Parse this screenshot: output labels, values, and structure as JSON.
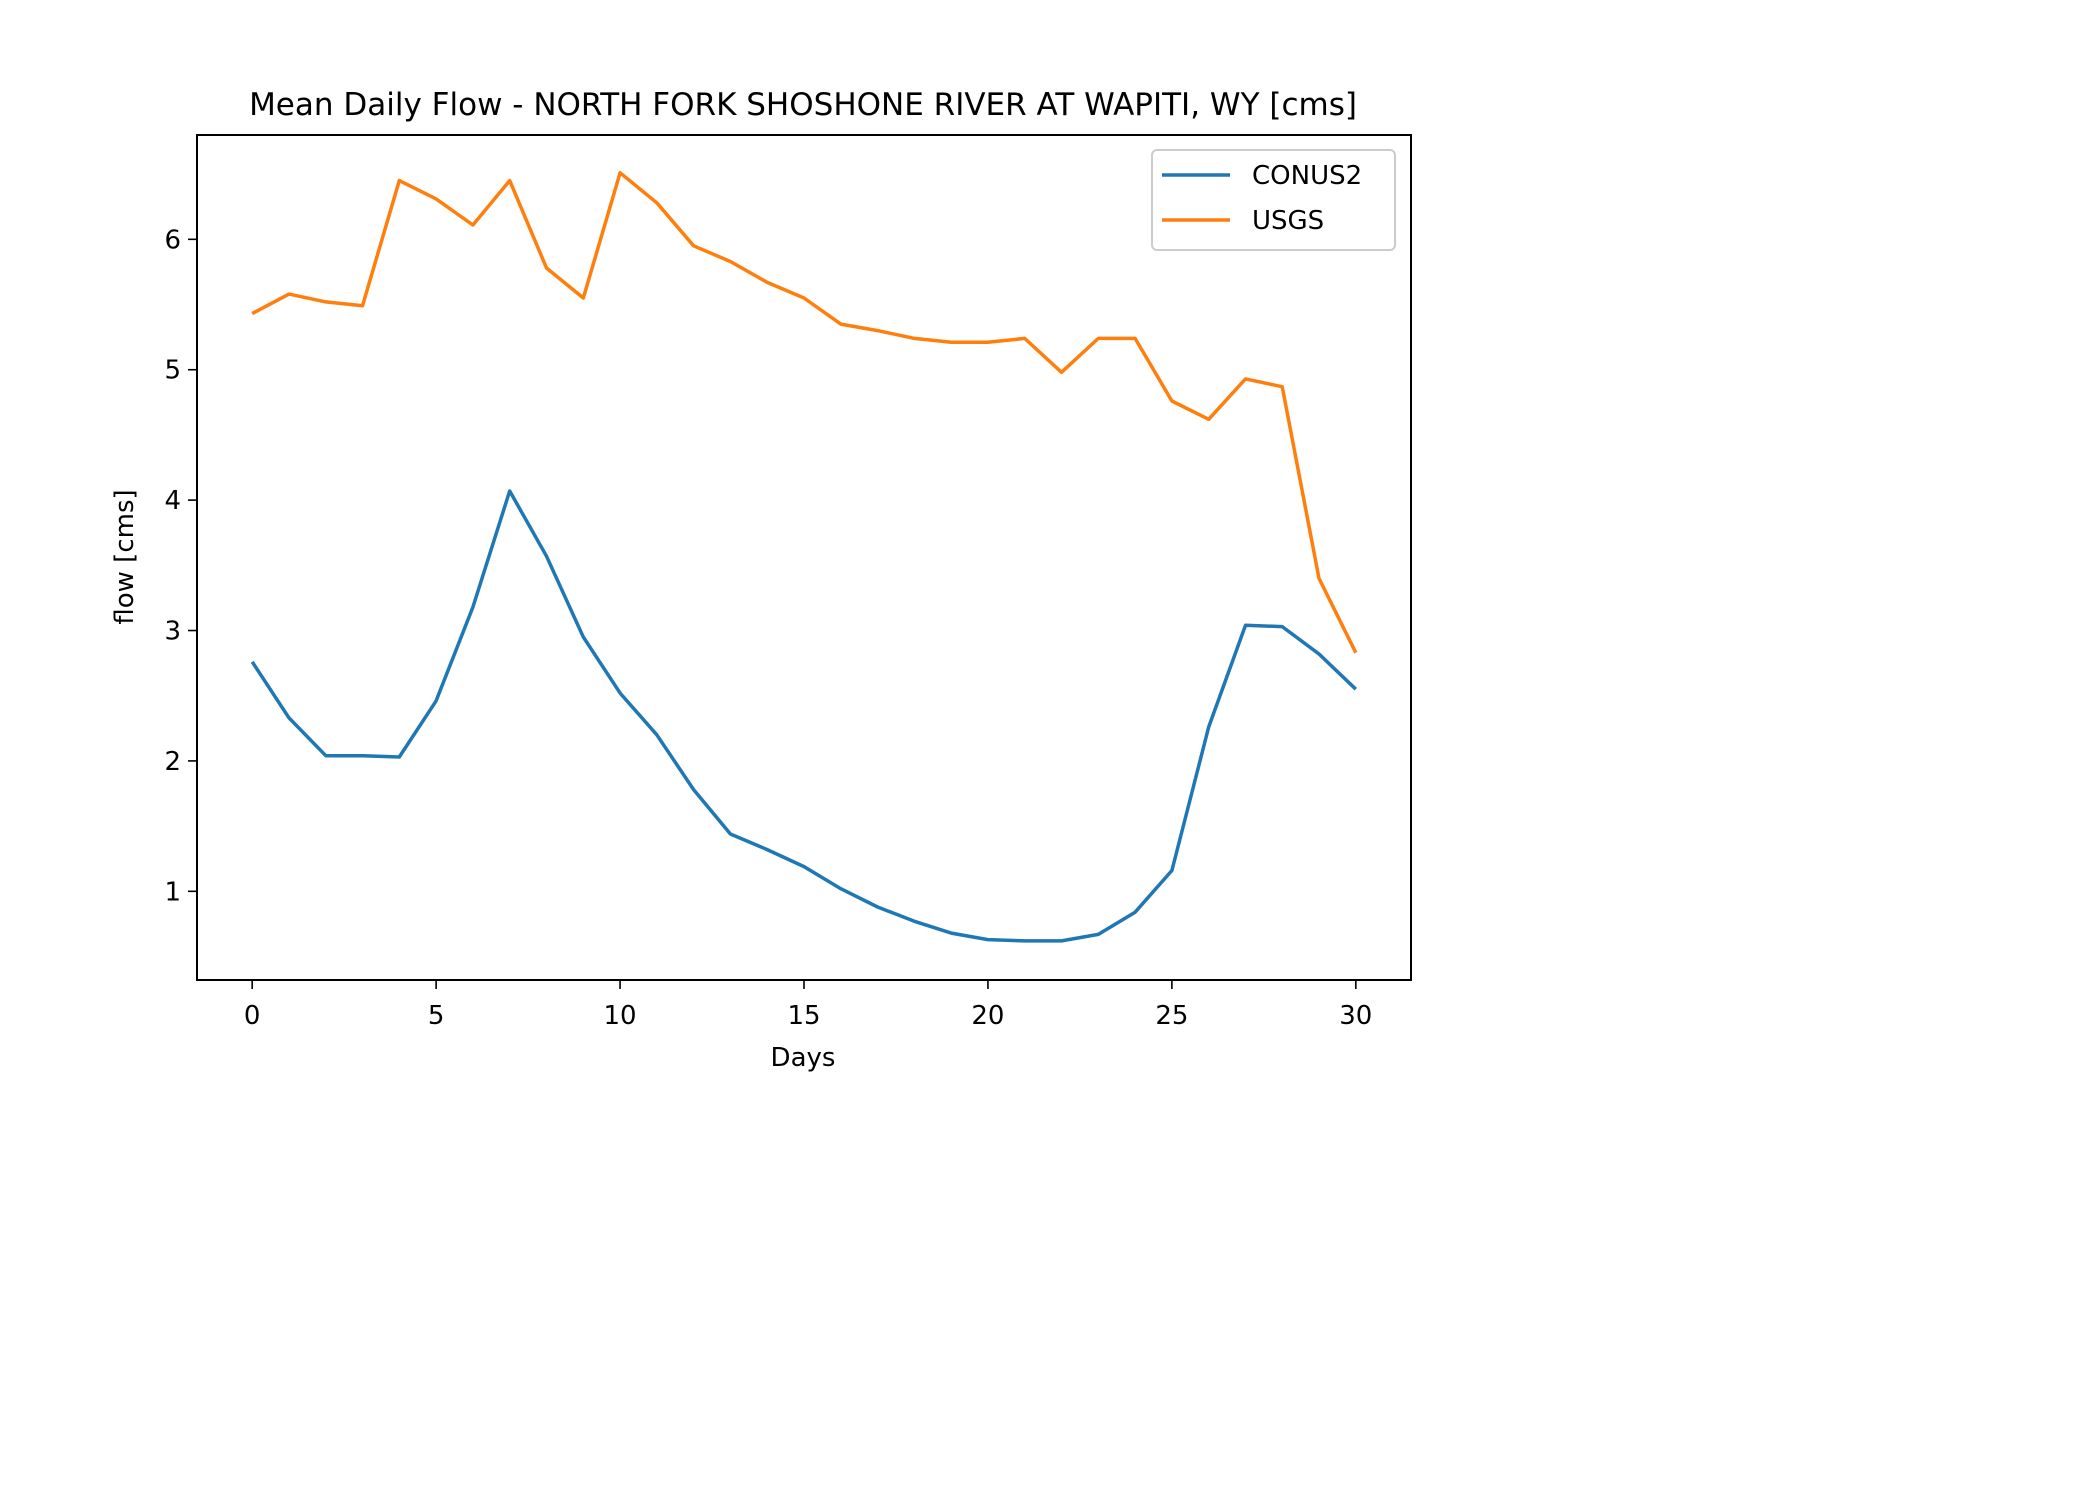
{
  "chart_data": {
    "type": "line",
    "title": "Mean Daily Flow - NORTH FORK SHOSHONE RIVER AT WAPITI, WY [cms]",
    "xlabel": "Days",
    "ylabel": "flow [cms]",
    "xlim": [
      -1.5,
      31.5
    ],
    "ylim": [
      0.32,
      6.8
    ],
    "x_ticks": [
      0,
      5,
      10,
      15,
      20,
      25,
      30
    ],
    "y_ticks": [
      1,
      2,
      3,
      4,
      5,
      6
    ],
    "grid": false,
    "legend_position": "top-right",
    "x": [
      0,
      1,
      2,
      3,
      4,
      5,
      6,
      7,
      8,
      9,
      10,
      11,
      12,
      13,
      14,
      15,
      16,
      17,
      18,
      19,
      20,
      21,
      22,
      23,
      24,
      25,
      26,
      27,
      28,
      29,
      30
    ],
    "series": [
      {
        "name": "CONUS2",
        "color": "#1f77b4",
        "values": [
          2.76,
          2.33,
          2.04,
          2.04,
          2.03,
          2.46,
          3.18,
          4.07,
          3.57,
          2.95,
          2.52,
          2.2,
          1.78,
          1.44,
          1.32,
          1.19,
          1.02,
          0.88,
          0.77,
          0.68,
          0.63,
          0.62,
          0.62,
          0.67,
          0.84,
          1.16,
          2.26,
          3.04,
          3.03,
          2.82,
          2.55
        ]
      },
      {
        "name": "USGS",
        "color": "#ff7f0e",
        "values": [
          5.43,
          5.58,
          5.52,
          5.49,
          6.45,
          6.31,
          6.11,
          6.45,
          5.78,
          5.55,
          6.51,
          6.28,
          5.95,
          5.83,
          5.67,
          5.55,
          5.35,
          5.3,
          5.24,
          5.21,
          5.21,
          5.24,
          4.98,
          5.24,
          5.24,
          4.76,
          4.62,
          4.93,
          4.87,
          3.4,
          2.83
        ]
      }
    ]
  }
}
